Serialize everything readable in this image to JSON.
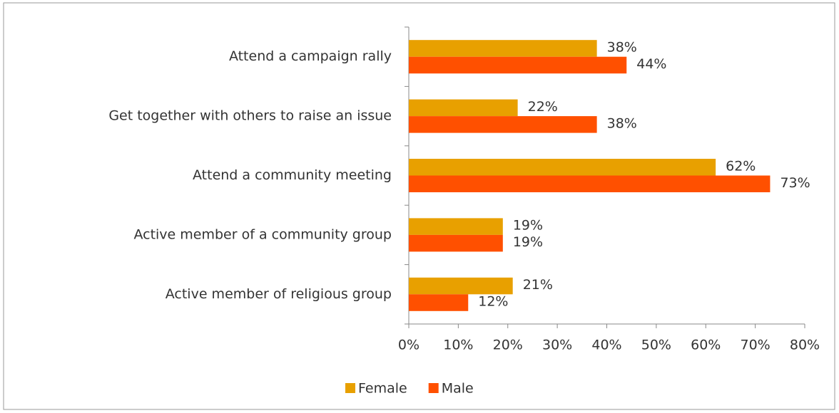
{
  "chart_data": {
    "type": "barh",
    "categories": [
      "Attend a campaign rally",
      "Get together with others to raise an issue",
      "Attend a community meeting",
      "Active member of a community group",
      "Active member of religious group"
    ],
    "series": [
      {
        "name": "Female",
        "color": "#e8a000",
        "values": [
          38,
          22,
          62,
          19,
          21
        ],
        "value_labels": [
          "38%",
          "22%",
          "62%",
          "19%",
          "21%"
        ]
      },
      {
        "name": "Male",
        "color": "#ff5000",
        "values": [
          44,
          38,
          73,
          19,
          12
        ],
        "value_labels": [
          "44%",
          "38%",
          "73%",
          "19%",
          "12%"
        ]
      }
    ],
    "xlim": [
      0,
      80
    ],
    "xticks": [
      {
        "value": 0,
        "label": "0%"
      },
      {
        "value": 10,
        "label": "10%"
      },
      {
        "value": 20,
        "label": "20%"
      },
      {
        "value": 30,
        "label": "30%"
      },
      {
        "value": 40,
        "label": "40%"
      },
      {
        "value": 50,
        "label": "50%"
      },
      {
        "value": 60,
        "label": "60%"
      },
      {
        "value": 70,
        "label": "70%"
      },
      {
        "value": 80,
        "label": "80%"
      }
    ],
    "grid": false,
    "legend": "bottom"
  }
}
